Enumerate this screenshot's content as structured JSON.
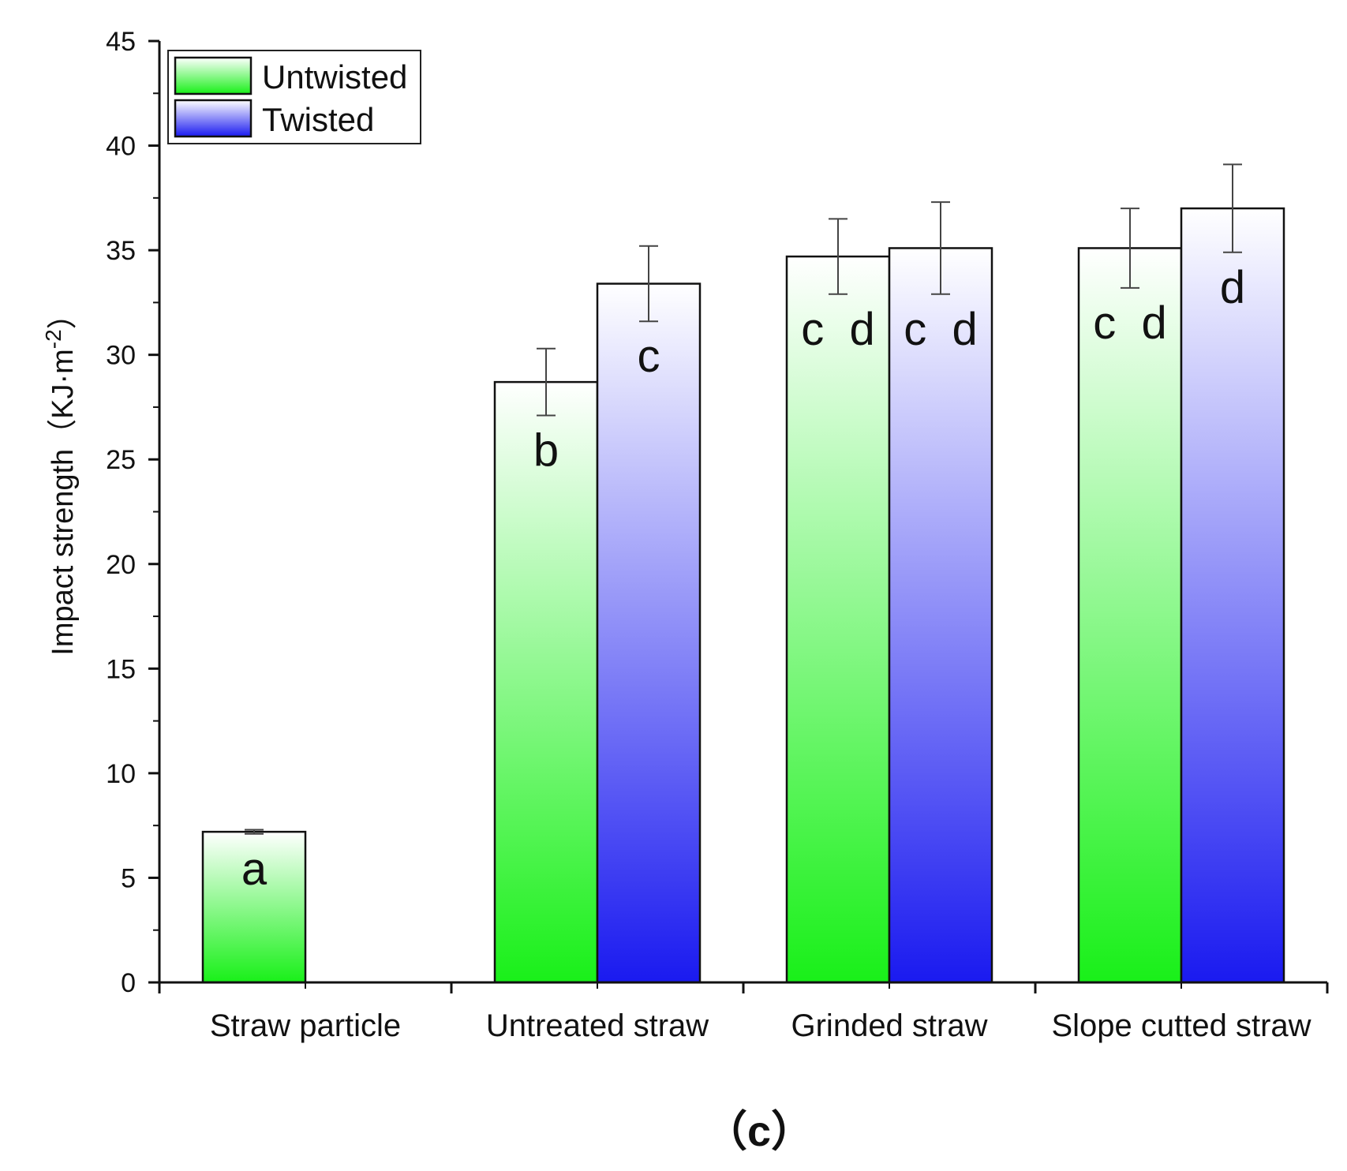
{
  "chart_data": {
    "type": "bar",
    "ylabel": "Impact strength（KJ·m",
    "ylabel_sup": "-2",
    "ylabel_close": "）",
    "ylim": [
      0,
      45
    ],
    "yticks": [
      0,
      5,
      10,
      15,
      20,
      25,
      30,
      35,
      40,
      45
    ],
    "categories": [
      "Straw particle",
      "Untreated straw",
      "Grinded straw",
      "Slope cutted straw"
    ],
    "series": [
      {
        "name": "Untwisted",
        "color_top": "#ffffff",
        "color_bottom": "#19f019",
        "values": [
          7.2,
          28.7,
          34.7,
          35.1
        ],
        "errors": [
          0.1,
          1.6,
          1.8,
          1.9
        ],
        "labels": [
          "a",
          "b",
          "c  d",
          "c  d"
        ]
      },
      {
        "name": "Twisted",
        "color_top": "#ffffff",
        "color_bottom": "#1a1af0",
        "values": [
          null,
          33.4,
          35.1,
          37.0
        ],
        "errors": [
          null,
          1.8,
          2.2,
          2.1
        ],
        "labels": [
          "",
          "c",
          "c  d",
          "d"
        ]
      }
    ],
    "legend": "top-left",
    "panel_label": "（c）"
  }
}
